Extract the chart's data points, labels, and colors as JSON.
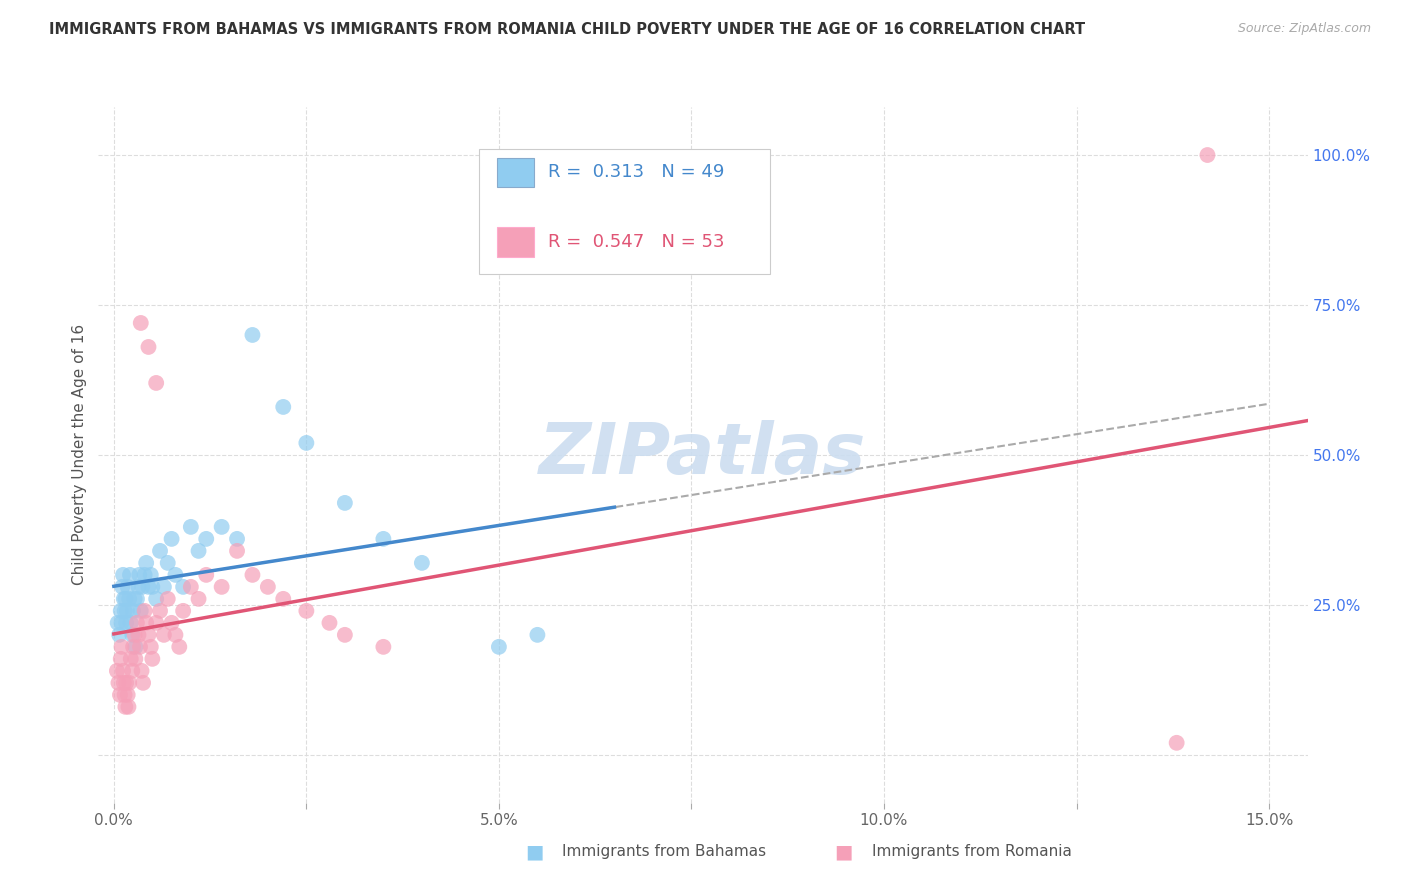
{
  "title": "IMMIGRANTS FROM BAHAMAS VS IMMIGRANTS FROM ROMANIA CHILD POVERTY UNDER THE AGE OF 16 CORRELATION CHART",
  "source": "Source: ZipAtlas.com",
  "xlim": [
    -0.2,
    15.5
  ],
  "ylim": [
    -8.0,
    108.0
  ],
  "bahamas_color": "#90ccf0",
  "romania_color": "#f5a0b8",
  "bahamas_line_color": "#4488cc",
  "romania_line_color": "#e05575",
  "gray_dash_color": "#aaaaaa",
  "right_axis_color": "#4477ee",
  "grid_color": "#dddddd",
  "background_color": "#ffffff",
  "bahamas_R": "0.313",
  "bahamas_N": "49",
  "romania_R": "0.547",
  "romania_N": "53",
  "title_fontsize": 10.5,
  "tick_fontsize": 11,
  "legend_fontsize": 13,
  "ylabel": "Child Poverty Under the Age of 16",
  "watermark": "ZIPatlas",
  "watermark_color": "#ccddf0",
  "bahamas_x": [
    0.05,
    0.07,
    0.09,
    0.1,
    0.11,
    0.12,
    0.13,
    0.14,
    0.15,
    0.16,
    0.17,
    0.18,
    0.2,
    0.21,
    0.22,
    0.24,
    0.25,
    0.27,
    0.28,
    0.3,
    0.32,
    0.33,
    0.35,
    0.37,
    0.4,
    0.42,
    0.45,
    0.48,
    0.5,
    0.55,
    0.6,
    0.65,
    0.7,
    0.75,
    0.8,
    0.9,
    1.0,
    1.1,
    1.2,
    1.4,
    1.6,
    1.8,
    2.2,
    2.5,
    3.0,
    3.5,
    4.0,
    5.0,
    5.5
  ],
  "bahamas_y": [
    22,
    20,
    24,
    22,
    28,
    30,
    26,
    24,
    26,
    22,
    24,
    28,
    26,
    30,
    22,
    20,
    24,
    26,
    18,
    26,
    28,
    30,
    24,
    28,
    30,
    32,
    28,
    30,
    28,
    26,
    34,
    28,
    32,
    36,
    30,
    28,
    38,
    34,
    36,
    38,
    36,
    70,
    58,
    52,
    42,
    36,
    32,
    18,
    20
  ],
  "romania_x": [
    0.04,
    0.06,
    0.08,
    0.09,
    0.1,
    0.12,
    0.13,
    0.14,
    0.15,
    0.16,
    0.18,
    0.19,
    0.2,
    0.22,
    0.24,
    0.25,
    0.27,
    0.28,
    0.3,
    0.32,
    0.34,
    0.36,
    0.38,
    0.4,
    0.42,
    0.45,
    0.48,
    0.5,
    0.55,
    0.6,
    0.65,
    0.7,
    0.75,
    0.8,
    0.85,
    0.9,
    1.0,
    1.1,
    1.2,
    1.4,
    1.6,
    1.8,
    2.0,
    2.2,
    2.5,
    2.8,
    3.0,
    3.5,
    0.35,
    0.45,
    0.55,
    13.8,
    14.2
  ],
  "romania_y": [
    14,
    12,
    10,
    16,
    18,
    14,
    12,
    10,
    8,
    12,
    10,
    8,
    12,
    16,
    14,
    18,
    20,
    16,
    22,
    20,
    18,
    14,
    12,
    24,
    22,
    20,
    18,
    16,
    22,
    24,
    20,
    26,
    22,
    20,
    18,
    24,
    28,
    26,
    30,
    28,
    34,
    30,
    28,
    26,
    24,
    22,
    20,
    18,
    72,
    68,
    62,
    2,
    100
  ]
}
